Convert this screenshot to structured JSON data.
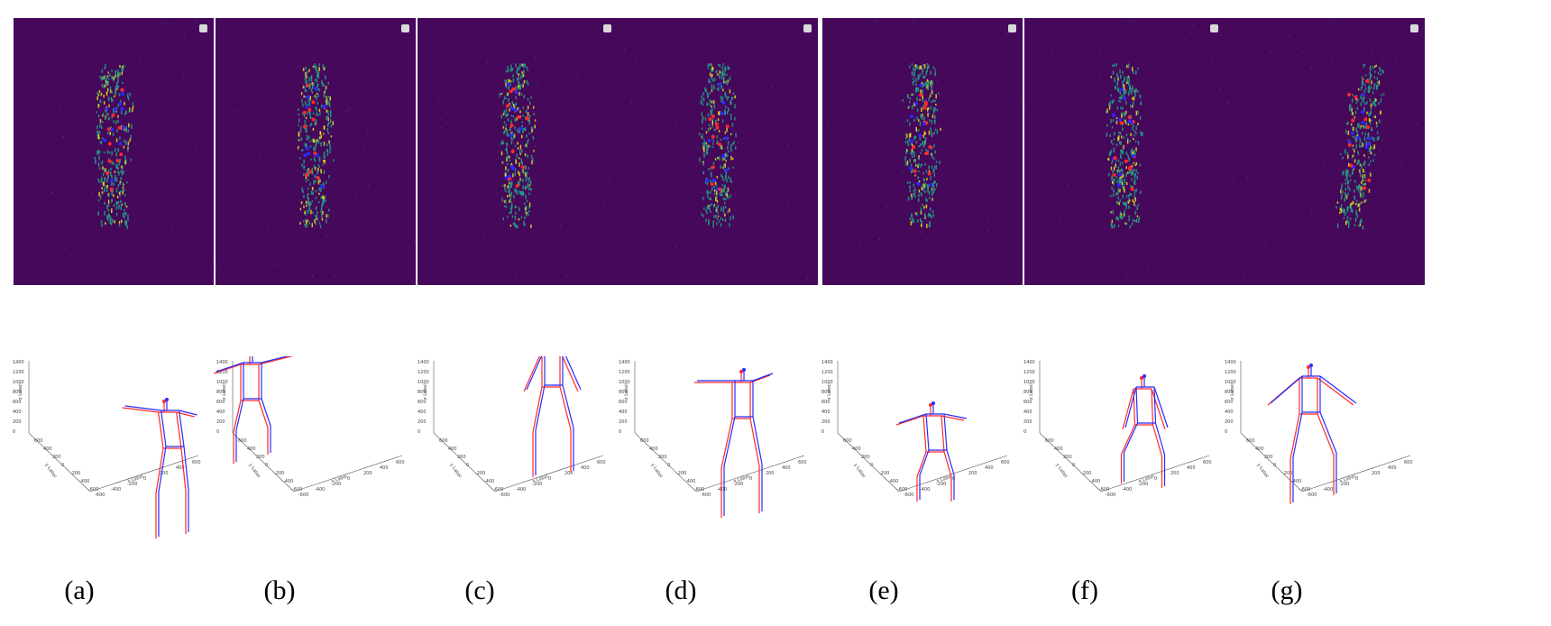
{
  "figure": {
    "panels": [
      {
        "id": "a",
        "label": "(a)"
      },
      {
        "id": "b",
        "label": "(b)"
      },
      {
        "id": "c",
        "label": "(c)"
      },
      {
        "id": "d",
        "label": "(d)"
      },
      {
        "id": "e",
        "label": "(e)"
      },
      {
        "id": "f",
        "label": "(f)"
      },
      {
        "id": "g",
        "label": "(g)"
      }
    ],
    "axis_labels": {
      "x": "x Label",
      "y": "y Label",
      "z": "z Label"
    },
    "z_ticks": [
      "1400",
      "1200",
      "1000",
      "800",
      "600",
      "400",
      "200",
      "0"
    ],
    "x_ticks": [
      "-600",
      "-400",
      "-200",
      "0",
      "200",
      "400",
      "600"
    ],
    "y_ticks": [
      "600",
      "400",
      "200",
      "0",
      "-200",
      "-400",
      "-600"
    ],
    "colors": {
      "event_background": "#46085a",
      "event_highlight": "#e6e61e",
      "event_mid": "#20a387",
      "prediction": "#ff2a2a",
      "ground_truth": "#2a2aff"
    }
  }
}
